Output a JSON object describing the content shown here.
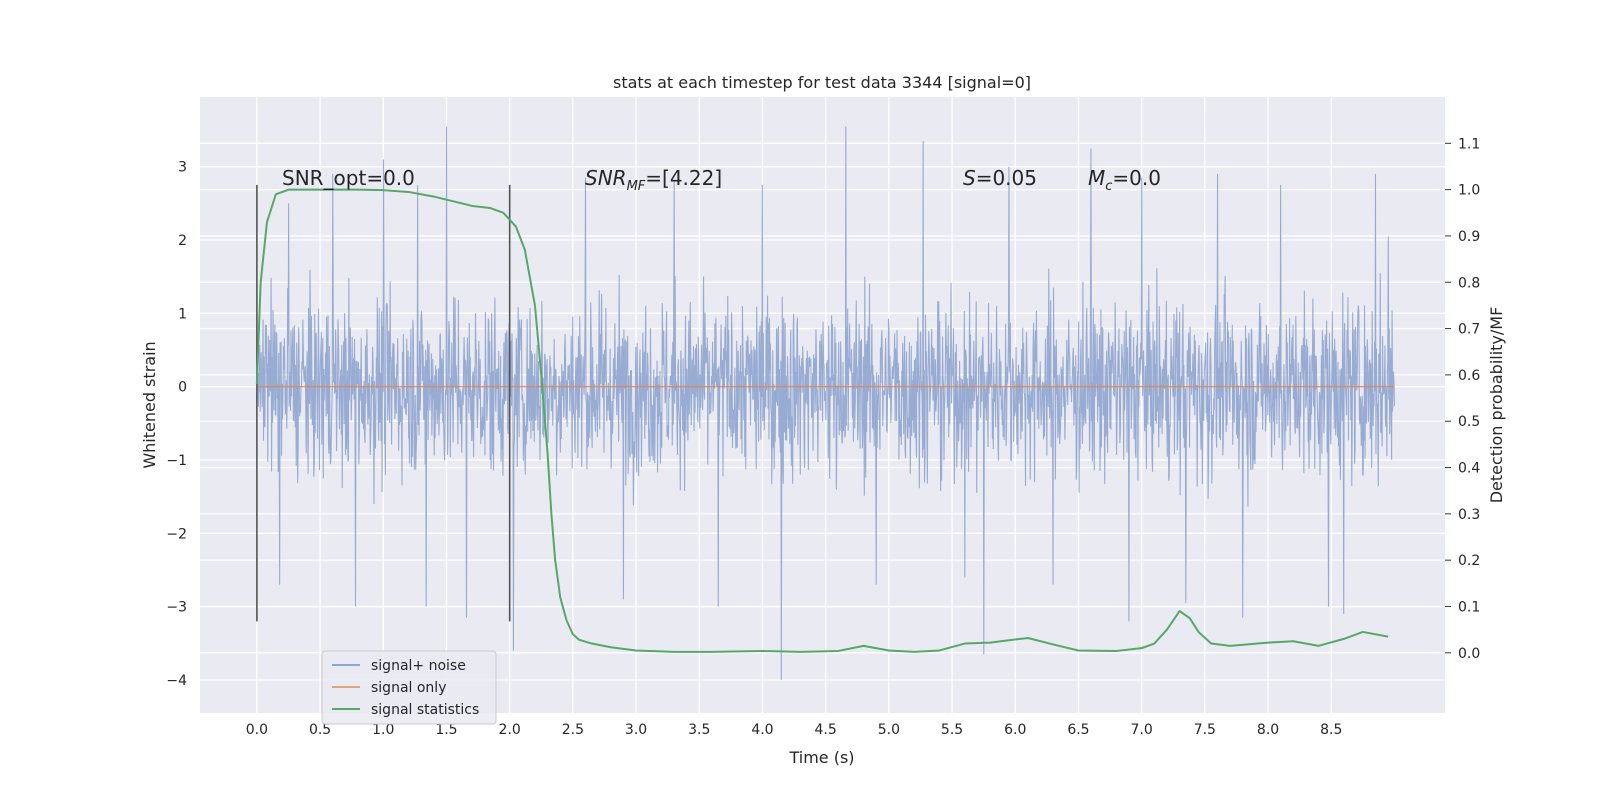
{
  "chart_data": {
    "type": "line",
    "title": "stats at each timestep for test data 3344 [signal=0]",
    "xlabel": "Time (s)",
    "ylabel": "Whitened strain",
    "y2label": "Detection probability/MF",
    "xlim": [
      -0.45,
      9.4
    ],
    "ylim": [
      -4.45,
      3.95
    ],
    "y2lim": [
      -0.13,
      1.2
    ],
    "xticks": [
      "0.0",
      "0.5",
      "1.0",
      "1.5",
      "2.0",
      "2.5",
      "3.0",
      "3.5",
      "4.0",
      "4.5",
      "5.0",
      "5.5",
      "6.0",
      "6.5",
      "7.0",
      "7.5",
      "8.0",
      "8.5"
    ],
    "yticks": [
      "3",
      "2",
      "1",
      "0",
      "−1",
      "−2",
      "−3",
      "−4"
    ],
    "y2ticks": [
      "1.1",
      "1.0",
      "0.9",
      "0.8",
      "0.7",
      "0.6",
      "0.5",
      "0.4",
      "0.3",
      "0.2",
      "0.1",
      "0.0"
    ],
    "grid": true,
    "legend_position": "bottom-left",
    "annotations": {
      "snr_opt": "SNR_opt=0.0",
      "snr_mf_main": "SNR",
      "snr_mf_sub": "MF",
      "snr_mf_rest": "=[4.22]",
      "s_main": "S",
      "s_rest": "=0.05",
      "mc_main": "M",
      "mc_sub": "c",
      "mc_rest": "=0.0"
    },
    "vlines": {
      "x": [
        0.0,
        2.0
      ],
      "ymin": -3.2,
      "ymax": 2.75
    },
    "series": [
      {
        "name": "signal+ noise",
        "color": "#8fa4ce",
        "description_shown": "noise-like strain trace between x=0 and x=9.0",
        "x_range": [
          0.0,
          9.0
        ],
        "typical_envelope": [
          -1.6,
          1.6
        ],
        "extremes": [
          {
            "x": 0.18,
            "y": -2.7
          },
          {
            "x": 0.25,
            "y": 2.5
          },
          {
            "x": 0.6,
            "y": 2.9
          },
          {
            "x": 0.78,
            "y": -3.0
          },
          {
            "x": 1.0,
            "y": 3.1
          },
          {
            "x": 1.27,
            "y": 2.75
          },
          {
            "x": 1.34,
            "y": -3.0
          },
          {
            "x": 1.5,
            "y": 3.55
          },
          {
            "x": 1.66,
            "y": -3.15
          },
          {
            "x": 2.03,
            "y": -3.6
          },
          {
            "x": 2.6,
            "y": 2.85
          },
          {
            "x": 2.9,
            "y": -2.9
          },
          {
            "x": 3.3,
            "y": 2.8
          },
          {
            "x": 3.65,
            "y": -3.0
          },
          {
            "x": 4.0,
            "y": 2.75
          },
          {
            "x": 4.15,
            "y": -4.0
          },
          {
            "x": 4.66,
            "y": 3.55
          },
          {
            "x": 4.9,
            "y": -2.7
          },
          {
            "x": 5.27,
            "y": 3.35
          },
          {
            "x": 5.6,
            "y": -2.6
          },
          {
            "x": 5.75,
            "y": -3.65
          },
          {
            "x": 5.95,
            "y": 3.0
          },
          {
            "x": 6.3,
            "y": -2.7
          },
          {
            "x": 6.6,
            "y": 3.25
          },
          {
            "x": 6.9,
            "y": -3.2
          },
          {
            "x": 7.0,
            "y": 2.85
          },
          {
            "x": 7.35,
            "y": -2.95
          },
          {
            "x": 7.6,
            "y": 2.9
          },
          {
            "x": 7.8,
            "y": -3.15
          },
          {
            "x": 8.1,
            "y": 2.75
          },
          {
            "x": 8.48,
            "y": -3.0
          },
          {
            "x": 8.6,
            "y": -3.1
          },
          {
            "x": 8.85,
            "y": 2.9
          },
          {
            "x": 8.95,
            "y": 2.05
          }
        ]
      },
      {
        "name": "signal only",
        "color": "#dd8452",
        "x": [
          0.0,
          9.0
        ],
        "y": [
          0.0,
          0.0
        ]
      },
      {
        "name": "signal statistics",
        "color": "#55a868",
        "axis": "right",
        "x": [
          0.0,
          0.03,
          0.08,
          0.15,
          0.25,
          0.4,
          0.6,
          0.8,
          1.0,
          1.2,
          1.4,
          1.55,
          1.7,
          1.85,
          1.95,
          2.05,
          2.12,
          2.2,
          2.25,
          2.3,
          2.33,
          2.36,
          2.4,
          2.45,
          2.5,
          2.55,
          2.65,
          2.8,
          3.0,
          3.3,
          3.6,
          4.0,
          4.3,
          4.6,
          4.8,
          5.0,
          5.2,
          5.4,
          5.6,
          5.8,
          6.1,
          6.3,
          6.5,
          6.8,
          7.0,
          7.1,
          7.2,
          7.3,
          7.38,
          7.45,
          7.55,
          7.7,
          8.0,
          8.2,
          8.4,
          8.6,
          8.75,
          8.95
        ],
        "y": [
          0.58,
          0.8,
          0.93,
          0.99,
          1.0,
          1.0,
          1.0,
          1.0,
          0.999,
          0.995,
          0.985,
          0.975,
          0.965,
          0.96,
          0.95,
          0.92,
          0.87,
          0.75,
          0.6,
          0.43,
          0.3,
          0.2,
          0.12,
          0.07,
          0.04,
          0.028,
          0.02,
          0.012,
          0.005,
          0.002,
          0.002,
          0.004,
          0.002,
          0.004,
          0.015,
          0.005,
          0.002,
          0.005,
          0.02,
          0.022,
          0.032,
          0.018,
          0.005,
          0.004,
          0.01,
          0.02,
          0.05,
          0.09,
          0.075,
          0.045,
          0.02,
          0.015,
          0.022,
          0.025,
          0.015,
          0.03,
          0.045,
          0.035
        ]
      }
    ]
  }
}
